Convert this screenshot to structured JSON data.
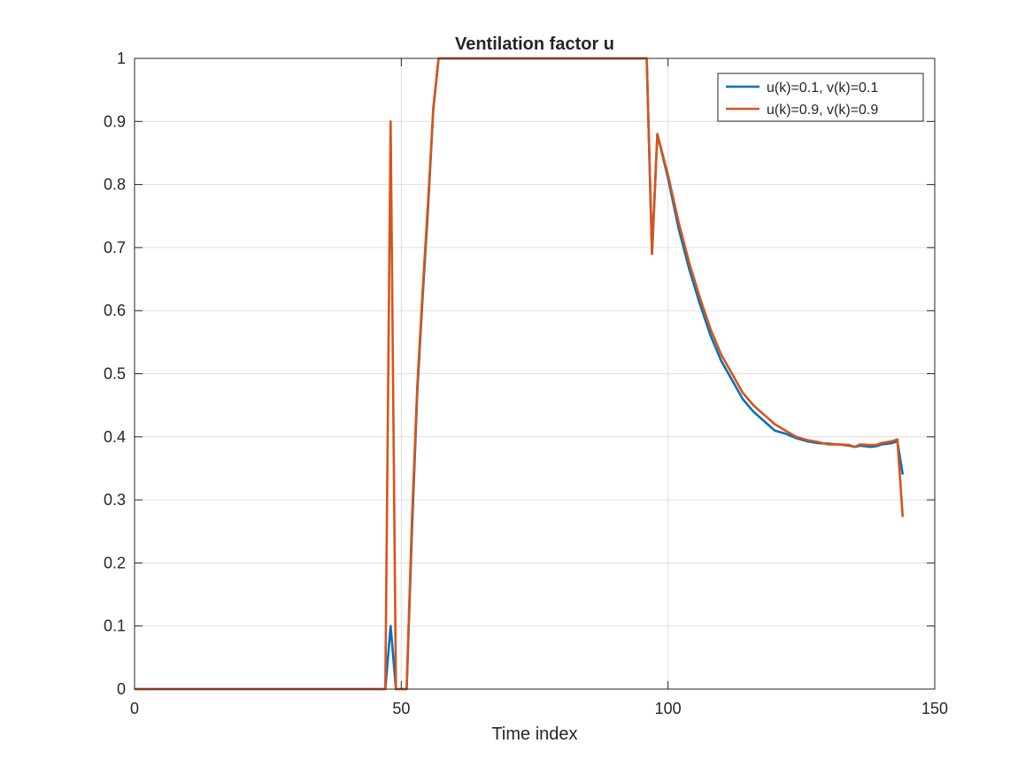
{
  "chart_data": {
    "type": "line",
    "title": "Ventilation factor u",
    "xlabel": "Time index",
    "ylabel": "",
    "xlim": [
      0,
      150
    ],
    "ylim": [
      0,
      1
    ],
    "xticks": [
      0,
      50,
      100,
      150
    ],
    "xtick_labels": [
      "0",
      "50",
      "100",
      "150"
    ],
    "yticks": [
      0,
      0.1,
      0.2,
      0.3,
      0.4,
      0.5,
      0.6,
      0.7,
      0.8,
      0.9,
      1
    ],
    "ytick_labels": [
      "0",
      "0.1",
      "0.2",
      "0.3",
      "0.4",
      "0.5",
      "0.6",
      "0.7",
      "0.8",
      "0.9",
      "1"
    ],
    "grid": true,
    "legend_position": "top-right",
    "series": [
      {
        "name": "u(k)=0.1, v(k)=0.1",
        "color": "#0072BD",
        "x": [
          0,
          47,
          48,
          49,
          50,
          51,
          52,
          53,
          54,
          55,
          56,
          57,
          96,
          97,
          98,
          100,
          102,
          104,
          106,
          108,
          110,
          112,
          114,
          116,
          118,
          120,
          122,
          124,
          126,
          128,
          130,
          132,
          134,
          135,
          136,
          138,
          139,
          140,
          142,
          143,
          144
        ],
        "y": [
          0,
          0,
          0.1,
          0,
          0,
          0,
          0.25,
          0.47,
          0.62,
          0.76,
          0.92,
          1,
          1,
          0.69,
          0.88,
          0.81,
          0.73,
          0.665,
          0.61,
          0.56,
          0.52,
          0.49,
          0.46,
          0.44,
          0.425,
          0.41,
          0.405,
          0.398,
          0.393,
          0.39,
          0.389,
          0.388,
          0.386,
          0.384,
          0.386,
          0.384,
          0.385,
          0.388,
          0.39,
          0.393,
          0.34
        ]
      },
      {
        "name": "u(k)=0.9, v(k)=0.9",
        "color": "#D95319",
        "x": [
          0,
          47,
          48,
          49,
          50,
          51,
          52,
          53,
          54,
          55,
          56,
          57,
          96,
          97,
          98,
          100,
          102,
          104,
          106,
          108,
          110,
          112,
          114,
          116,
          118,
          120,
          122,
          124,
          126,
          128,
          130,
          132,
          134,
          135,
          136,
          138,
          139,
          140,
          142,
          143,
          144
        ],
        "y": [
          0,
          0,
          0.9,
          0,
          0,
          0,
          0.27,
          0.48,
          0.63,
          0.77,
          0.92,
          1,
          1,
          0.69,
          0.88,
          0.815,
          0.74,
          0.675,
          0.62,
          0.57,
          0.53,
          0.5,
          0.47,
          0.45,
          0.435,
          0.42,
          0.41,
          0.4,
          0.395,
          0.392,
          0.388,
          0.388,
          0.387,
          0.384,
          0.388,
          0.387,
          0.387,
          0.39,
          0.393,
          0.396,
          0.273
        ]
      }
    ]
  }
}
